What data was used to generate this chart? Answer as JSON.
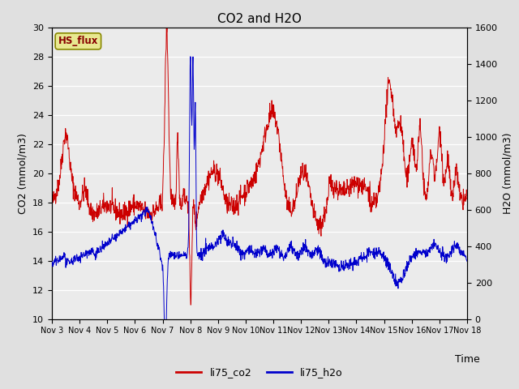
{
  "title": "CO2 and H2O",
  "xlabel": "Time",
  "ylabel_left": "CO2 (mmol/m3)",
  "ylabel_right": "H2O (mmol/m3)",
  "ylim_left": [
    10,
    30
  ],
  "ylim_right": [
    0,
    1600
  ],
  "yticks_left": [
    10,
    12,
    14,
    16,
    18,
    20,
    22,
    24,
    26,
    28,
    30
  ],
  "yticks_right": [
    0,
    200,
    400,
    600,
    800,
    1000,
    1200,
    1400,
    1600
  ],
  "xtick_labels": [
    "Nov 3",
    "Nov 4",
    "Nov 5",
    "Nov 6",
    "Nov 7",
    "Nov 8",
    "Nov 9",
    "Nov 10",
    "Nov 11",
    "Nov 12",
    "Nov 13",
    "Nov 14",
    "Nov 15",
    "Nov 16",
    "Nov 17",
    "Nov 18"
  ],
  "co2_color": "#cc0000",
  "h2o_color": "#0000cc",
  "background_color": "#e0e0e0",
  "plot_bg_color": "#ebebeb",
  "legend_box_facecolor": "#e8e890",
  "legend_box_edgecolor": "#888800",
  "legend_box_text": "HS_flux",
  "legend_box_textcolor": "#880000",
  "legend_entries": [
    "li75_co2",
    "li75_h2o"
  ],
  "n_days": 15,
  "pts_per_day": 96,
  "title_fontsize": 11,
  "axis_label_fontsize": 9,
  "tick_fontsize": 8
}
